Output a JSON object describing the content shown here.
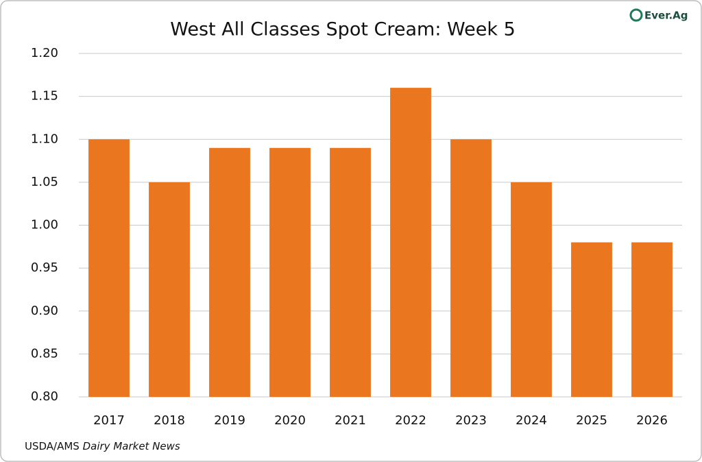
{
  "chart_data": {
    "type": "bar",
    "title": "West All Classes Spot Cream: Week 5",
    "categories": [
      "2017",
      "2018",
      "2019",
      "2020",
      "2021",
      "2022",
      "2023",
      "2024",
      "2025",
      "2026"
    ],
    "values": [
      1.1,
      1.05,
      1.09,
      1.09,
      1.09,
      1.16,
      1.1,
      1.05,
      0.98,
      0.98
    ],
    "color": "#ea761f",
    "ylim": [
      0.8,
      1.2
    ],
    "yticks": [
      {
        "value": 0.8,
        "label": "0.80"
      },
      0.85,
      {
        "value": 0.9,
        "label": "0.90"
      },
      0.95,
      {
        "value": 1.0,
        "label": "1.00"
      },
      1.05,
      {
        "value": 1.1,
        "label": "1.10"
      },
      1.15,
      {
        "value": 1.2,
        "label": "1.20"
      }
    ],
    "grid": true,
    "source_agency": "USDA/AMS",
    "source_publication": "Dairy Market News",
    "logo": "Ever.Ag"
  }
}
